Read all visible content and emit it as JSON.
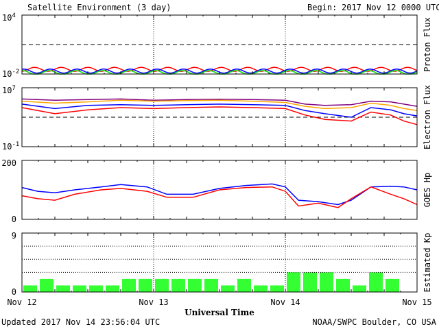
{
  "title": "Satellite Environment (3 day)",
  "begin_label": "Begin:",
  "begin_value": "2017 Nov 12 0000 UTC",
  "xlabel": "Universal Time",
  "updated": "Updated 2017 Nov 14 23:56:04 UTC",
  "credit": "NOAA/SWPC Boulder, CO USA",
  "x_ticks": [
    "Nov 12",
    "Nov 13",
    "Nov 14",
    "Nov 15"
  ],
  "colors": {
    "red": "#ff0000",
    "blue": "#0000ff",
    "green": "#00dd00",
    "orange": "#ffa500",
    "purple": "#800080",
    "kp_bar": "#33ff33"
  },
  "chart_data": [
    {
      "type": "line",
      "ylabel": "Proton Flux",
      "yscale": "log",
      "ylim": [
        0.01,
        10000
      ],
      "y_ticks": [
        {
          "mantissa": "10",
          "exp": "4"
        },
        {
          "mantissa": "10",
          "exp": "-2"
        }
      ],
      "threshold": 10,
      "x": [
        0,
        1,
        2,
        3
      ],
      "series": [
        {
          "color": "red",
          "values": [
            0.03,
            0.03,
            0.03,
            0.03
          ]
        },
        {
          "color": "blue",
          "values": [
            0.02,
            0.02,
            0.02,
            0.02
          ]
        },
        {
          "color": "green",
          "values": [
            0.014,
            0.014,
            0.014,
            0.014
          ]
        }
      ]
    },
    {
      "type": "line",
      "ylabel": "Electron Flux",
      "yscale": "log",
      "ylim": [
        0.1,
        10000000
      ],
      "y_ticks": [
        {
          "mantissa": "10",
          "exp": "7"
        },
        {
          "mantissa": "10",
          "exp": "-1"
        }
      ],
      "threshold": 1000,
      "x": [
        0,
        0.25,
        0.5,
        0.75,
        1.0,
        1.25,
        1.5,
        1.75,
        2.0,
        2.15,
        2.3,
        2.5,
        2.65,
        2.8,
        2.9,
        3.0
      ],
      "series": [
        {
          "color": "purple",
          "values": [
            300000,
            200000,
            250000,
            300000,
            200000,
            250000,
            280000,
            250000,
            200000,
            60000,
            40000,
            50000,
            150000,
            120000,
            60000,
            30000
          ]
        },
        {
          "color": "orange",
          "values": [
            150000,
            80000,
            120000,
            200000,
            150000,
            180000,
            200000,
            150000,
            100000,
            30000,
            15000,
            20000,
            80000,
            40000,
            15000,
            8000
          ]
        },
        {
          "color": "blue",
          "values": [
            60000,
            15000,
            40000,
            50000,
            40000,
            50000,
            60000,
            50000,
            40000,
            8000,
            3000,
            1000,
            20000,
            10000,
            3000,
            1500
          ]
        },
        {
          "color": "red",
          "values": [
            20000,
            3000,
            10000,
            20000,
            15000,
            20000,
            25000,
            20000,
            15000,
            2000,
            500,
            300,
            5000,
            2000,
            300,
            100
          ]
        }
      ]
    },
    {
      "type": "line",
      "ylabel": "GOES Hp",
      "ylim": [
        0,
        200
      ],
      "y_ticks": [
        200,
        0
      ],
      "x": [
        0,
        0.12,
        0.25,
        0.4,
        0.6,
        0.75,
        0.95,
        1.1,
        1.3,
        1.5,
        1.7,
        1.9,
        2.0,
        2.1,
        2.25,
        2.4,
        2.5,
        2.65,
        2.8,
        2.9,
        3.0
      ],
      "series": [
        {
          "color": "blue",
          "values": [
            108,
            95,
            90,
            100,
            110,
            118,
            110,
            85,
            85,
            105,
            115,
            120,
            110,
            65,
            60,
            50,
            65,
            110,
            112,
            110,
            100
          ]
        },
        {
          "color": "red",
          "values": [
            80,
            70,
            65,
            85,
            100,
            105,
            95,
            75,
            75,
            100,
            108,
            110,
            95,
            45,
            55,
            40,
            70,
            110,
            85,
            70,
            50
          ]
        }
      ]
    },
    {
      "type": "bar",
      "ylabel": "Estimated Kp",
      "ylim": [
        0,
        9
      ],
      "y_ticks": [
        9,
        0
      ],
      "bar_hours": 3,
      "values": [
        1,
        2,
        1,
        1,
        1,
        1,
        2,
        2,
        2,
        2,
        2,
        2,
        1,
        2,
        1,
        1,
        3,
        3,
        3,
        2,
        1,
        3,
        2,
        0
      ]
    }
  ]
}
